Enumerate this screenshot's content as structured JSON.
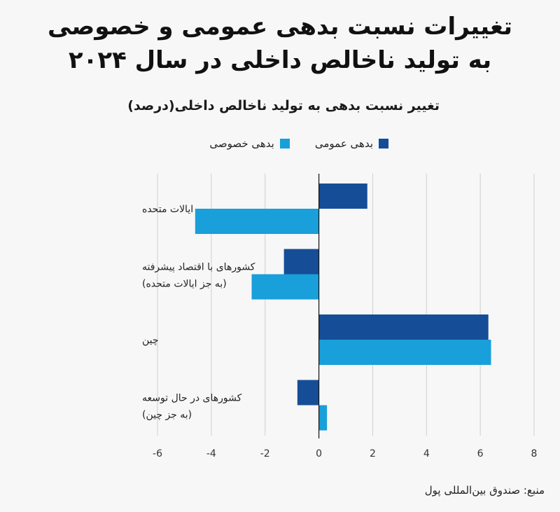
{
  "title_line1": "تغییرات نسبت بدهی عمومی و خصوصی",
  "title_line2": "به تولید ناخالص داخلی در سال ۲۰۲۴",
  "source": "منبع: صندوق بین‌المللی پول",
  "colors": {
    "public": "#164d97",
    "private": "#199fd9",
    "grid": "#cfcfcf",
    "zero": "#111111"
  },
  "chart_data": {
    "type": "bar",
    "orientation": "horizontal",
    "title": "تغییرات نسبت بدهی عمومی و خصوصی به تولید ناخالص داخلی در سال ۲۰۲۴",
    "subtitle": "تغییر نسبت بدهی به تولید ناخالص داخلی(درصد)",
    "categories": [
      [
        "ایالات متحده"
      ],
      [
        "کشورهای با اقتصاد پیشرفته",
        "(به جز ایالات متحده)"
      ],
      [
        "چین"
      ],
      [
        "کشورهای در حال توسعه",
        "(به جز چین)"
      ]
    ],
    "series": [
      {
        "name": "بدهی عمومی",
        "values": [
          1.8,
          -1.3,
          6.3,
          -0.8
        ]
      },
      {
        "name": "بدهی خصوصی",
        "values": [
          -4.6,
          -2.5,
          6.4,
          0.3
        ]
      }
    ],
    "xlim": [
      -6,
      8
    ],
    "xticks": [
      -6,
      -4,
      -2,
      0,
      2,
      4,
      6,
      8
    ],
    "grid": true,
    "legend_position": "top"
  }
}
